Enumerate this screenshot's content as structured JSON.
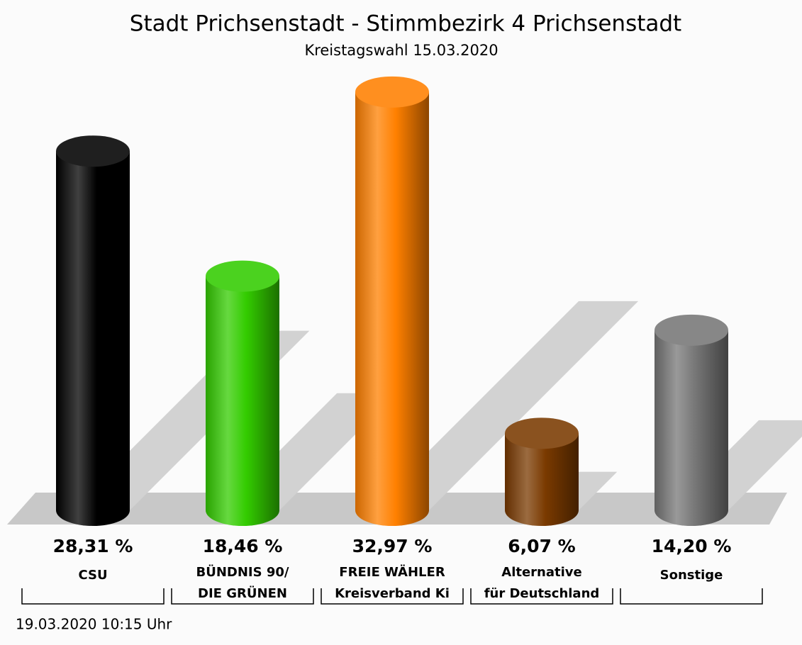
{
  "chart_data": {
    "type": "bar",
    "title": "Stadt Prichsenstadt - Stimmbezirk 4 Prichsenstadt",
    "subtitle": "Kreistagswahl 15.03.2020",
    "categories": [
      [
        "CSU"
      ],
      [
        "BÜNDNIS 90/",
        "DIE GRÜNEN"
      ],
      [
        "FREIE WÄHLER",
        "Kreisverband Ki"
      ],
      [
        "Alternative",
        "für Deutschland"
      ],
      [
        "Sonstige"
      ]
    ],
    "values": [
      28.31,
      18.46,
      32.97,
      6.07,
      14.2
    ],
    "value_labels": [
      "28,31 %",
      "18,46 %",
      "32,97 %",
      "6,07 %",
      "14,20 %"
    ],
    "colors": [
      "#000000",
      "#33cc00",
      "#ff8000",
      "#7a3a00",
      "#777777"
    ],
    "footer": "19.03.2020 10:15 Uhr"
  }
}
